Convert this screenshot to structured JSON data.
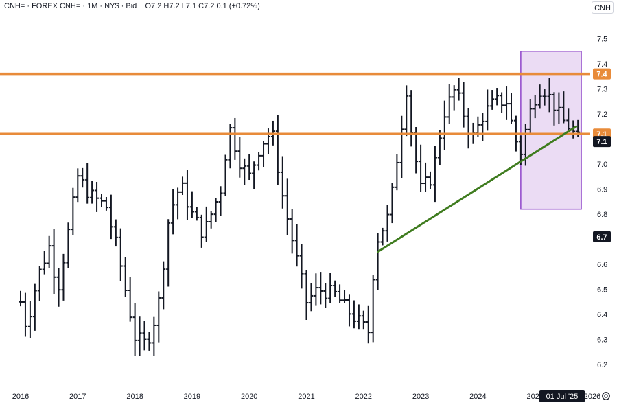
{
  "header": {
    "symbol": "CNH=",
    "sep1": "·",
    "source": "FOREX CNH=",
    "sep2": "·",
    "interval": "1M",
    "sep3": "·",
    "exchange": "NY$",
    "sep4": "·",
    "quote": "Bid",
    "ohlc": "O7.2  H7.2  L7.1  C7.2  0.1 (+0.72%)"
  },
  "currency_button": "CNH",
  "cursor_date": "01 Jul '25",
  "settings_icon": "gear-icon",
  "colors": {
    "bars": "#131722",
    "resistance": "#e88b3a",
    "trendline": "#3f7c1f",
    "highlight_fill": "#e7d6f2",
    "highlight_border": "#8e44c9",
    "price_badge": "#131722"
  },
  "chart_data": {
    "type": "ohlc",
    "title": "",
    "xlabel": "",
    "ylabel": "",
    "ylim": [
      6.13,
      7.62
    ],
    "xlim": [
      2016.0,
      2025.75
    ],
    "x_ticks": [
      "2016",
      "2017",
      "2018",
      "2019",
      "2020",
      "2021",
      "2022",
      "2023",
      "2024",
      "2025",
      "2026"
    ],
    "x_tick_positions": [
      2016,
      2017,
      2018,
      2019,
      2020,
      2021,
      2022,
      2023,
      2024,
      2025,
      2026
    ],
    "y_ticks": [
      "6.2",
      "6.3",
      "6.4",
      "6.5",
      "6.6",
      "6.7",
      "6.8",
      "6.9",
      "7.0",
      "7.1",
      "7.2",
      "7.3",
      "7.4",
      "7.5"
    ],
    "y_tick_values": [
      6.2,
      6.3,
      6.4,
      6.5,
      6.6,
      6.7,
      6.8,
      6.9,
      7.0,
      7.1,
      7.2,
      7.3,
      7.4,
      7.5
    ],
    "price_badges": [
      {
        "label": "7.4",
        "value": 7.36,
        "style": "orange"
      },
      {
        "label": "7.1",
        "value": 7.12,
        "style": "orange"
      },
      {
        "label": "7.1",
        "value": 7.09,
        "style": "dark"
      },
      {
        "label": "6.7",
        "value": 6.71,
        "style": "dark"
      }
    ],
    "resistance_levels": [
      7.36,
      7.12
    ],
    "trendline": {
      "x": [
        2022.25,
        2025.72
      ],
      "y": [
        6.65,
        7.15
      ]
    },
    "highlight_region": {
      "x": [
        2024.75,
        2025.85
      ],
      "y": [
        6.82,
        7.45
      ]
    },
    "knots": [
      [
        2016.0,
        6.45
      ],
      [
        2016.1,
        6.35
      ],
      [
        2016.3,
        6.55
      ],
      [
        2016.5,
        6.67
      ],
      [
        2016.65,
        6.5
      ],
      [
        2016.85,
        6.75
      ],
      [
        2017.0,
        6.95
      ],
      [
        2017.2,
        6.88
      ],
      [
        2017.5,
        6.83
      ],
      [
        2017.7,
        6.65
      ],
      [
        2018.0,
        6.31
      ],
      [
        2018.2,
        6.28
      ],
      [
        2018.4,
        6.42
      ],
      [
        2018.6,
        6.8
      ],
      [
        2018.8,
        6.92
      ],
      [
        2019.0,
        6.8
      ],
      [
        2019.2,
        6.72
      ],
      [
        2019.5,
        6.9
      ],
      [
        2019.65,
        7.15
      ],
      [
        2019.85,
        7.0
      ],
      [
        2020.0,
        6.95
      ],
      [
        2020.2,
        7.08
      ],
      [
        2020.4,
        7.13
      ],
      [
        2020.6,
        6.85
      ],
      [
        2020.8,
        6.65
      ],
      [
        2021.0,
        6.45
      ],
      [
        2021.2,
        6.5
      ],
      [
        2021.5,
        6.48
      ],
      [
        2021.7,
        6.42
      ],
      [
        2022.0,
        6.35
      ],
      [
        2022.1,
        6.33
      ],
      [
        2022.2,
        6.68
      ],
      [
        2022.45,
        6.8
      ],
      [
        2022.6,
        7.05
      ],
      [
        2022.75,
        7.3
      ],
      [
        2022.85,
        7.1
      ],
      [
        2023.0,
        6.9
      ],
      [
        2023.2,
        6.95
      ],
      [
        2023.4,
        7.2
      ],
      [
        2023.6,
        7.3
      ],
      [
        2023.75,
        7.2
      ],
      [
        2023.9,
        7.1
      ],
      [
        2024.1,
        7.2
      ],
      [
        2024.3,
        7.25
      ],
      [
        2024.5,
        7.25
      ],
      [
        2024.65,
        7.1
      ],
      [
        2024.75,
        7.05
      ],
      [
        2024.9,
        7.2
      ],
      [
        2025.05,
        7.3
      ],
      [
        2025.15,
        7.3
      ],
      [
        2025.3,
        7.25
      ],
      [
        2025.45,
        7.18
      ],
      [
        2025.6,
        7.15
      ],
      [
        2025.72,
        7.1
      ]
    ]
  }
}
